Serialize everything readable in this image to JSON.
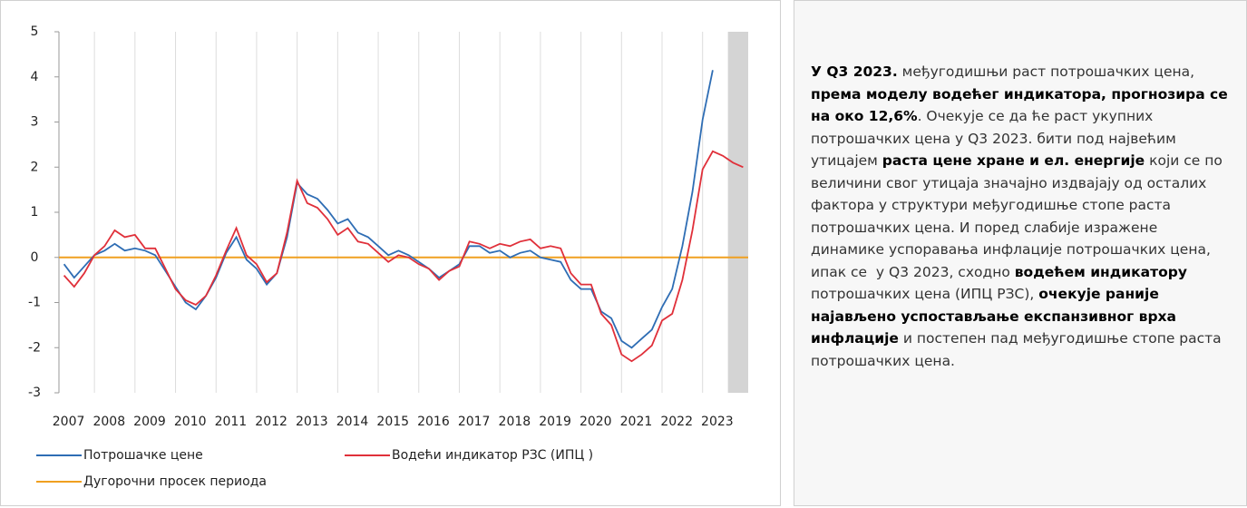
{
  "chart_data": {
    "type": "line",
    "categories": [
      "2007",
      null,
      null,
      null,
      "2008",
      null,
      null,
      null,
      "2009",
      null,
      null,
      null,
      "2010",
      null,
      null,
      null,
      "2011",
      null,
      null,
      null,
      "2012",
      null,
      null,
      null,
      "2013",
      null,
      null,
      null,
      "2014",
      null,
      null,
      null,
      "2015",
      null,
      null,
      null,
      "2016",
      null,
      null,
      null,
      "2017",
      null,
      null,
      null,
      "2018",
      null,
      null,
      null,
      "2019",
      null,
      null,
      null,
      "2020",
      null,
      null,
      null,
      "2021",
      null,
      null,
      null,
      "2022",
      null,
      null,
      null,
      "2023",
      null,
      null,
      null
    ],
    "series": [
      {
        "name": "Потрошачке цене",
        "color": "#2e6db4",
        "values": [
          -0.15,
          -0.45,
          -0.2,
          0.05,
          0.15,
          0.3,
          0.15,
          0.2,
          0.15,
          0.05,
          -0.3,
          -0.65,
          -1.0,
          -1.15,
          -0.85,
          -0.45,
          0.1,
          0.45,
          -0.05,
          -0.25,
          -0.6,
          -0.35,
          0.45,
          1.65,
          1.4,
          1.3,
          1.05,
          0.75,
          0.85,
          0.55,
          0.45,
          0.25,
          0.05,
          0.15,
          0.05,
          -0.1,
          -0.25,
          -0.45,
          -0.3,
          -0.15,
          0.25,
          0.25,
          0.1,
          0.15,
          0.0,
          0.1,
          0.15,
          0.0,
          -0.05,
          -0.1,
          -0.5,
          -0.7,
          -0.7,
          -1.2,
          -1.35,
          -1.85,
          -2.0,
          -1.8,
          -1.6,
          -1.1,
          -0.7,
          0.25,
          1.45,
          3.05,
          4.15,
          null,
          null,
          null
        ]
      },
      {
        "name": "Водећи индикатор РЗС  (ИПЦ )",
        "color": "#e0303a",
        "values": [
          -0.4,
          -0.65,
          -0.35,
          0.05,
          0.25,
          0.6,
          0.45,
          0.5,
          0.2,
          0.2,
          -0.25,
          -0.7,
          -0.95,
          -1.05,
          -0.85,
          -0.4,
          0.15,
          0.65,
          0.05,
          -0.15,
          -0.55,
          -0.35,
          0.55,
          1.7,
          1.2,
          1.1,
          0.85,
          0.5,
          0.65,
          0.35,
          0.3,
          0.1,
          -0.1,
          0.05,
          0.0,
          -0.15,
          -0.25,
          -0.5,
          -0.3,
          -0.2,
          0.35,
          0.3,
          0.2,
          0.3,
          0.25,
          0.35,
          0.4,
          0.2,
          0.25,
          0.2,
          -0.35,
          -0.6,
          -0.6,
          -1.25,
          -1.5,
          -2.15,
          -2.3,
          -2.15,
          -1.95,
          -1.4,
          -1.25,
          -0.5,
          0.6,
          1.95,
          2.35,
          2.25,
          2.1,
          2.0
        ]
      }
    ],
    "reference_line": {
      "name": "Дугорочни просек периода",
      "color": "#f0a020",
      "value": 0
    },
    "ylim": [
      -3,
      5
    ],
    "yticks": [
      -3,
      -2,
      -1,
      0,
      1,
      2,
      3,
      4,
      5
    ]
  },
  "text_panel": {
    "segments": [
      {
        "text": "У Q3 2023.",
        "bold": true
      },
      {
        "text": " међугодишњи раст потрошачких цена, ",
        "bold": false
      },
      {
        "text": "према моделу водећег индикатора, прогнозира се на око 12,6%",
        "bold": true
      },
      {
        "text": ". Очекује се да ће раст укупних потрошачких цена у Q3 2023. бити под највећим утицајем ",
        "bold": false
      },
      {
        "text": "раста цене хране и ел. енергије",
        "bold": true
      },
      {
        "text": " који се по величини свог утицаја значајно издвајају од осталих фактора у структури међугодишње стопе раста потрошачких цена. И поред слабије изражене динамике успоравања инфлације потрошачких цена, ипак се  у Q3 2023, сходно ",
        "bold": false
      },
      {
        "text": "водећем индикатору",
        "bold": true
      },
      {
        "text": " потрошачких цена (ИПЦ РЗС), ",
        "bold": false
      },
      {
        "text": "очекује раније најављено успостављање експанзивног врха инфлације",
        "bold": true
      },
      {
        "text": " и постепен пад међугодишње стопе раста потрошачких цена.",
        "bold": false
      }
    ]
  }
}
